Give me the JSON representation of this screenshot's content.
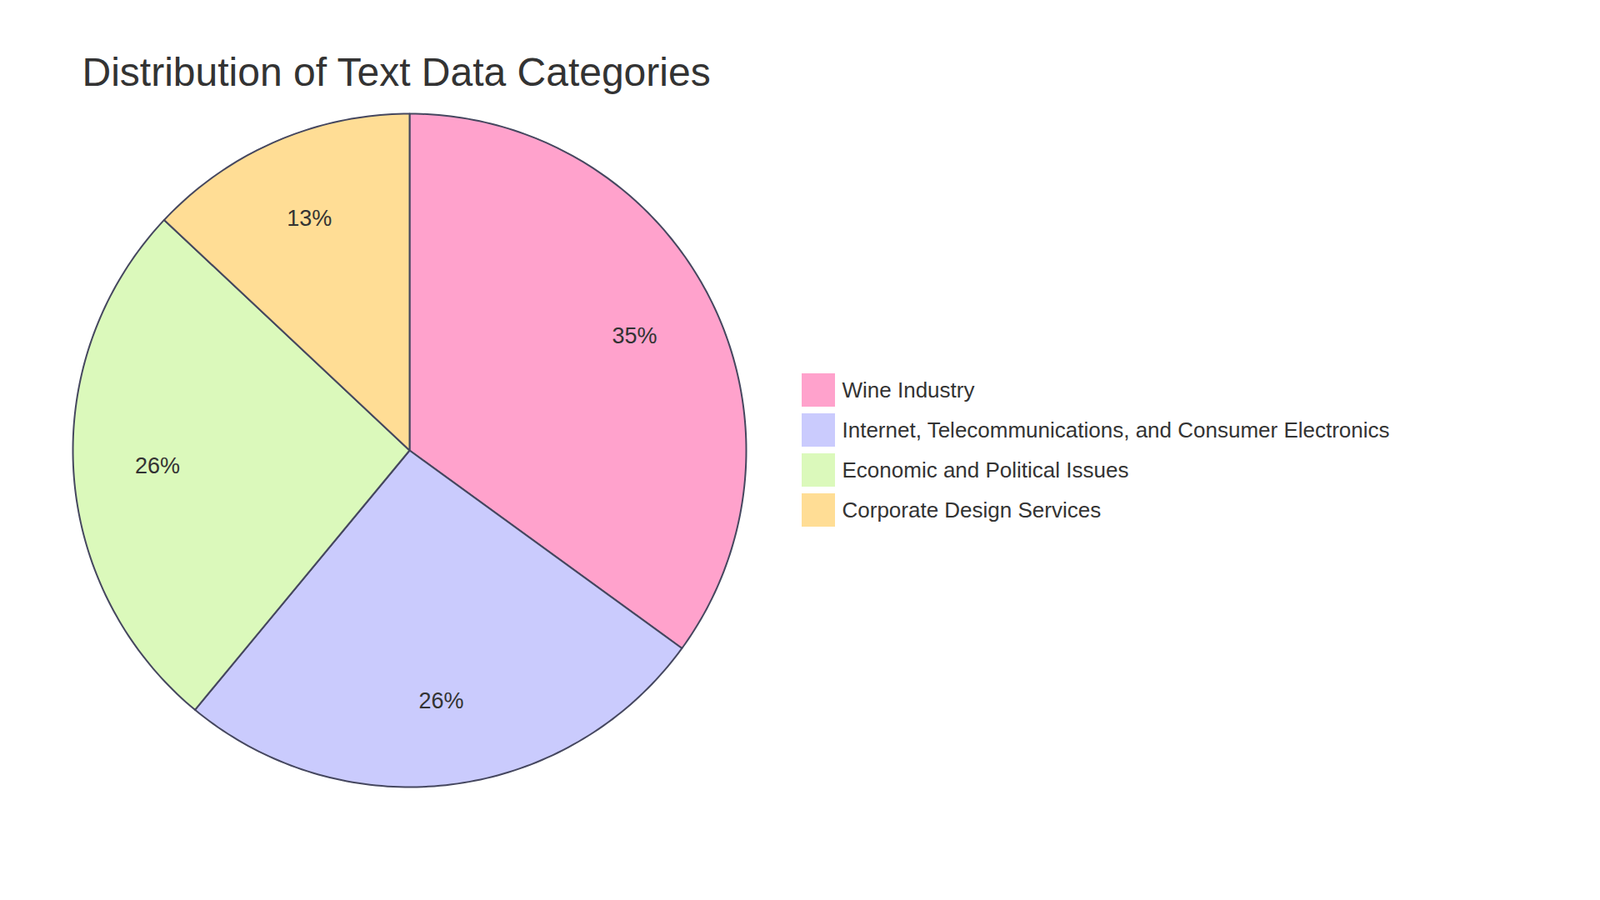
{
  "chart_data": {
    "type": "pie",
    "title": "Distribution of Text Data Categories",
    "categories": [
      "Wine Industry",
      "Internet, Telecommunications, and Consumer Electronics",
      "Economic and Political Issues",
      "Corporate Design Services"
    ],
    "values": [
      35,
      26,
      26,
      13
    ],
    "value_labels": [
      "35%",
      "26%",
      "26%",
      "13%"
    ],
    "colors": [
      "#ffa2cc",
      "#cacbfd",
      "#dbf9bb",
      "#ffdd95"
    ],
    "data_labels": true,
    "legend": "right"
  }
}
